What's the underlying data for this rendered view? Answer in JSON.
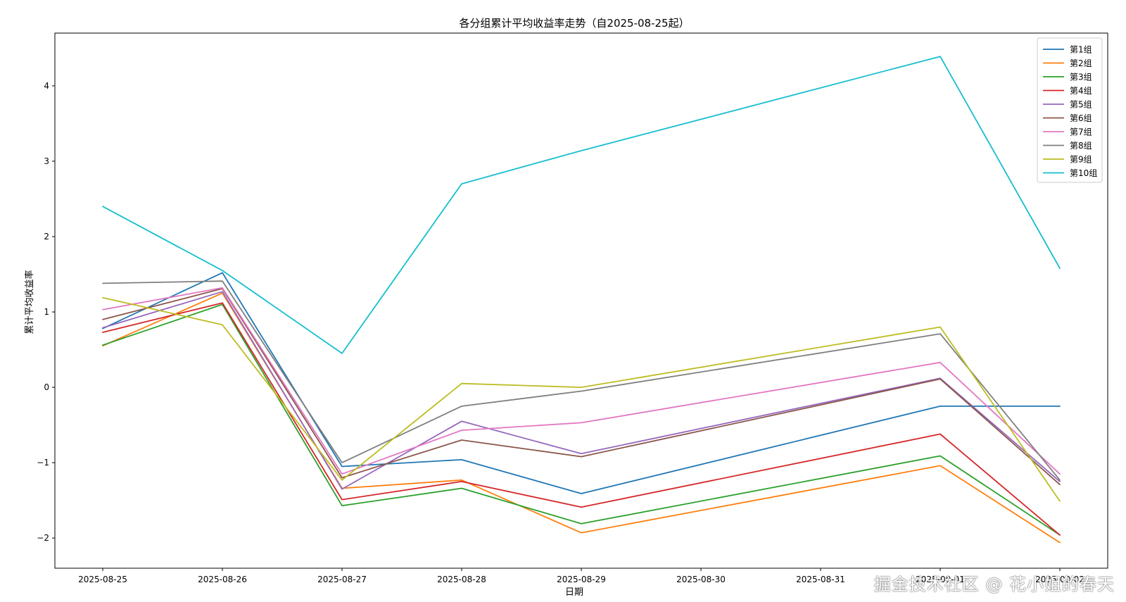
{
  "chart_data": {
    "type": "line",
    "title": "各分组累计平均收益率走势（自2025-08-25起）",
    "xlabel": "日期",
    "ylabel": "累计平均收益率",
    "x": [
      "2025-08-25",
      "2025-08-26",
      "2025-08-27",
      "2025-08-28",
      "2025-08-29",
      "2025-09-01",
      "2025-09-02"
    ],
    "x_ticks": [
      "2025-08-25",
      "2025-08-26",
      "2025-08-27",
      "2025-08-28",
      "2025-08-29",
      "2025-08-30",
      "2025-08-31",
      "2025-09-01",
      "2025-09-02"
    ],
    "xlim": [
      "2025-08-24 14:24",
      "2025-09-02 09:36"
    ],
    "ylim": [
      -2.4,
      4.7
    ],
    "y_ticks": [
      -2,
      -1,
      0,
      1,
      2,
      3,
      4
    ],
    "y_tick_labels": [
      "−2",
      "−1",
      "0",
      "1",
      "2",
      "3",
      "4"
    ],
    "grid": false,
    "legend_position": "top-right",
    "series": [
      {
        "name": "第1组",
        "color": "#1f77b4",
        "values": [
          0.78,
          1.52,
          -1.05,
          -0.96,
          -1.41,
          -0.25,
          -0.25
        ]
      },
      {
        "name": "第2组",
        "color": "#ff7f0e",
        "values": [
          0.55,
          1.25,
          -1.34,
          -1.23,
          -1.93,
          -1.04,
          -2.06
        ]
      },
      {
        "name": "第3组",
        "color": "#2ca02c",
        "values": [
          0.56,
          1.1,
          -1.57,
          -1.34,
          -1.81,
          -0.91,
          -1.96
        ]
      },
      {
        "name": "第4组",
        "color": "#d62728",
        "values": [
          0.73,
          1.12,
          -1.49,
          -1.25,
          -1.59,
          -0.62,
          -1.96
        ]
      },
      {
        "name": "第5组",
        "color": "#9467bd",
        "values": [
          0.79,
          1.27,
          -1.35,
          -0.45,
          -0.88,
          0.12,
          -1.25
        ]
      },
      {
        "name": "第6组",
        "color": "#8c564b",
        "values": [
          0.9,
          1.31,
          -1.2,
          -0.7,
          -0.92,
          0.11,
          -1.29
        ]
      },
      {
        "name": "第7组",
        "color": "#e377c2",
        "values": [
          1.03,
          1.32,
          -1.15,
          -0.57,
          -0.47,
          0.33,
          -1.15
        ]
      },
      {
        "name": "第8组",
        "color": "#7f7f7f",
        "values": [
          1.38,
          1.41,
          -1.0,
          -0.25,
          -0.05,
          0.71,
          -1.23
        ]
      },
      {
        "name": "第9组",
        "color": "#bcbd22",
        "values": [
          1.19,
          0.83,
          -1.23,
          0.05,
          0.0,
          0.8,
          -1.51
        ]
      },
      {
        "name": "第10组",
        "color": "#17becf",
        "values": [
          2.4,
          1.55,
          0.45,
          2.7,
          3.14,
          4.39,
          1.58
        ]
      }
    ]
  },
  "watermark": "掘金技术社区 @ 花小姐的春天"
}
